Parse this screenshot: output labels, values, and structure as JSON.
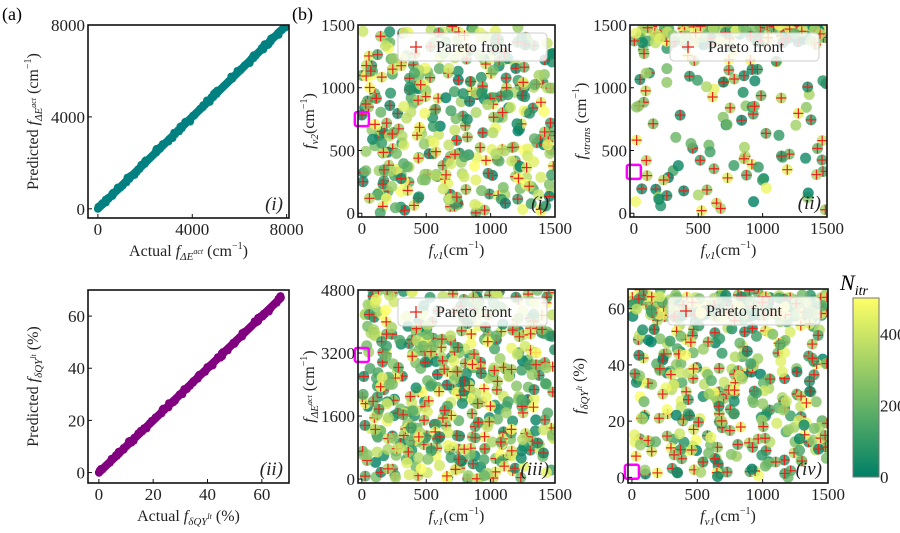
{
  "panel_labels": [
    "(a)",
    "(b)"
  ],
  "colors": {
    "parity_i": "#008080",
    "parity_ii": "#800080",
    "pareto": "#e8231a",
    "highlight": "#ff00ff",
    "cmap_low": "#008066",
    "cmap_high": "#ffff66"
  },
  "colorbar": {
    "label": [
      [
        "N",
        ""
      ],
      [
        "itr",
        "s"
      ]
    ],
    "ticks": [
      0,
      200,
      400
    ],
    "range": [
      0,
      500
    ],
    "colormap": "summer"
  },
  "chart_data": [
    {
      "id": "a-i",
      "type": "scatter",
      "panel_tag": "(i)",
      "color": "#008080",
      "marker": "star",
      "xlabel": [
        [
          "Actual ",
          ""
        ],
        [
          "f",
          "i"
        ],
        [
          "ΔE",
          "s"
        ],
        [
          "act",
          "ss"
        ],
        [
          " (cm",
          ""
        ],
        [
          "−1",
          "sup"
        ],
        [
          ")",
          ""
        ]
      ],
      "ylabel": [
        [
          "Predicted ",
          ""
        ],
        [
          "f",
          "i"
        ],
        [
          "ΔE",
          "s"
        ],
        [
          "act",
          "ss"
        ],
        [
          " (cm",
          ""
        ],
        [
          "−1",
          "sup"
        ],
        [
          ")",
          ""
        ]
      ],
      "xticks": [
        0,
        4000,
        8000
      ],
      "yticks": [
        0,
        4000,
        8000
      ],
      "xlim": [
        -420,
        8100
      ],
      "ylim": [
        -400,
        8000
      ],
      "trend": "y = x (predicted ≈ actual)",
      "range": [
        0,
        8000
      ]
    },
    {
      "id": "b-i",
      "type": "scatter",
      "panel_tag": "(i)",
      "color_by": "N_itr",
      "xlabel": [
        [
          "f",
          "i"
        ],
        [
          "ν1",
          "s"
        ],
        [
          "(cm",
          ""
        ],
        [
          "−1",
          "sup"
        ],
        [
          ")",
          ""
        ]
      ],
      "ylabel": [
        [
          "f",
          "i"
        ],
        [
          "ν2",
          "s"
        ],
        [
          "(cm",
          ""
        ],
        [
          "−1",
          "sup"
        ],
        [
          ")",
          ""
        ]
      ],
      "xticks": [
        0,
        500,
        1000,
        1500
      ],
      "yticks": [
        0,
        500,
        1000,
        1500
      ],
      "xlim": [
        -30,
        1500
      ],
      "ylim": [
        -30,
        1500
      ],
      "legend": "Pareto front",
      "legend_position": "top-right",
      "highlight": [
        0,
        750
      ]
    },
    {
      "id": "b-ii",
      "type": "scatter",
      "panel_tag": "(ii)",
      "color_by": "N_itr",
      "xlabel": [
        [
          "f",
          "i"
        ],
        [
          "ν1",
          "s"
        ],
        [
          "(cm",
          ""
        ],
        [
          "−1",
          "sup"
        ],
        [
          ")",
          ""
        ]
      ],
      "ylabel": [
        [
          "f",
          "i"
        ],
        [
          "νtrans",
          "s"
        ],
        [
          " (cm",
          ""
        ],
        [
          "−1",
          "sup"
        ],
        [
          ")",
          ""
        ]
      ],
      "xticks": [
        0,
        500,
        1000,
        1500
      ],
      "yticks": [
        0,
        500,
        1000,
        1500
      ],
      "xlim": [
        -30,
        1500
      ],
      "ylim": [
        -30,
        1500
      ],
      "legend": "Pareto front",
      "legend_position": "top-right",
      "highlight": [
        0,
        330
      ]
    },
    {
      "id": "a-ii",
      "type": "scatter",
      "panel_tag": "(ii)",
      "color": "#800080",
      "marker": "star",
      "xlabel": [
        [
          "Actual ",
          ""
        ],
        [
          "f",
          "i"
        ],
        [
          "δQY",
          "s"
        ],
        [
          "lt",
          "ss"
        ],
        [
          " (%)",
          ""
        ]
      ],
      "ylabel": [
        [
          "Predicted ",
          ""
        ],
        [
          "f",
          "i"
        ],
        [
          "δQY",
          "s"
        ],
        [
          "lt",
          "ss"
        ],
        [
          " (%)",
          ""
        ]
      ],
      "xticks": [
        0,
        20,
        40,
        60
      ],
      "yticks": [
        0,
        20,
        40,
        60
      ],
      "xlim": [
        -4,
        70
      ],
      "ylim": [
        -4,
        70
      ],
      "trend": "y = x (predicted ≈ actual)",
      "range": [
        0,
        67
      ]
    },
    {
      "id": "b-iii",
      "type": "scatter",
      "panel_tag": "(iii)",
      "color_by": "N_itr",
      "xlabel": [
        [
          "f",
          "i"
        ],
        [
          "ν1",
          "s"
        ],
        [
          "(cm",
          ""
        ],
        [
          "−1",
          "sup"
        ],
        [
          ")",
          ""
        ]
      ],
      "ylabel": [
        [
          "f",
          "i"
        ],
        [
          "ΔE",
          "s"
        ],
        [
          "act",
          "ss"
        ],
        [
          " (cm",
          ""
        ],
        [
          "−1",
          "sup"
        ],
        [
          ")",
          ""
        ]
      ],
      "xticks": [
        0,
        500,
        1000,
        1500
      ],
      "yticks": [
        0,
        1600,
        3200,
        4800
      ],
      "xlim": [
        -30,
        1500
      ],
      "ylim": [
        -100,
        4800
      ],
      "legend": "Pareto front",
      "legend_position": "top-right",
      "highlight": [
        0,
        3150
      ]
    },
    {
      "id": "b-iv",
      "type": "scatter",
      "panel_tag": "(iv)",
      "color_by": "N_itr",
      "xlabel": [
        [
          "f",
          "i"
        ],
        [
          "ν1",
          "s"
        ],
        [
          "(cm",
          ""
        ],
        [
          "−1",
          "sup"
        ],
        [
          ")",
          ""
        ]
      ],
      "ylabel": [
        [
          "f",
          "i"
        ],
        [
          "δQY",
          "s"
        ],
        [
          "lt",
          "ss"
        ],
        [
          " (%)",
          ""
        ]
      ],
      "xticks": [
        0,
        500,
        1000,
        1500
      ],
      "yticks": [
        0,
        20,
        40,
        60
      ],
      "xlim": [
        -30,
        1500
      ],
      "ylim": [
        -2,
        67
      ],
      "legend": "Pareto front",
      "legend_position": "top-right",
      "highlight": [
        0,
        2
      ]
    }
  ]
}
